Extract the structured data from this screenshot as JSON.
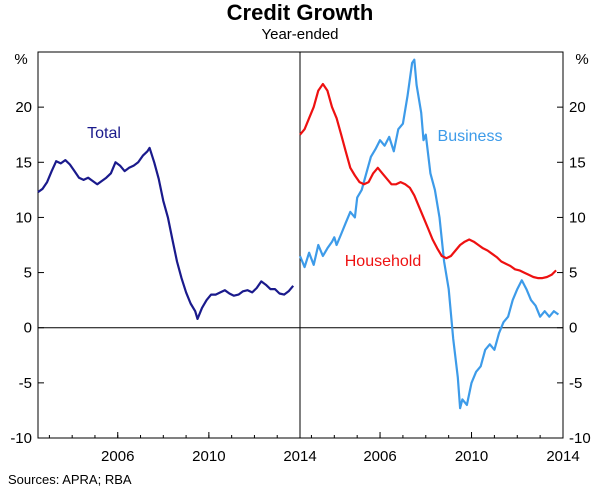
{
  "title": "Credit Growth",
  "subtitle": "Year-ended",
  "source": "Sources: APRA; RBA",
  "colors": {
    "total": "#1a1a8c",
    "business": "#3d9be9",
    "household": "#ee1111",
    "axis": "#000000"
  },
  "chart_data": [
    {
      "type": "line",
      "panel": "left",
      "unit_label": "%",
      "ylim": [
        -10,
        25
      ],
      "yticks": [
        -10,
        -5,
        0,
        5,
        10,
        15,
        20
      ],
      "xlim": [
        2002.5,
        2014
      ],
      "xticks": [
        2006,
        2010,
        2014
      ],
      "series": [
        {
          "name": "Total",
          "color_key": "total",
          "points": [
            [
              2002.5,
              12.3
            ],
            [
              2002.7,
              12.6
            ],
            [
              2002.9,
              13.2
            ],
            [
              2003.1,
              14.2
            ],
            [
              2003.3,
              15.1
            ],
            [
              2003.5,
              14.9
            ],
            [
              2003.7,
              15.2
            ],
            [
              2003.9,
              14.8
            ],
            [
              2004.1,
              14.2
            ],
            [
              2004.3,
              13.6
            ],
            [
              2004.5,
              13.4
            ],
            [
              2004.7,
              13.6
            ],
            [
              2004.9,
              13.3
            ],
            [
              2005.1,
              13.0
            ],
            [
              2005.3,
              13.3
            ],
            [
              2005.5,
              13.6
            ],
            [
              2005.7,
              14.0
            ],
            [
              2005.9,
              15.0
            ],
            [
              2006.1,
              14.7
            ],
            [
              2006.3,
              14.2
            ],
            [
              2006.5,
              14.5
            ],
            [
              2006.7,
              14.7
            ],
            [
              2006.9,
              15.0
            ],
            [
              2007.1,
              15.6
            ],
            [
              2007.3,
              16.0
            ],
            [
              2007.4,
              16.3
            ],
            [
              2007.6,
              15.0
            ],
            [
              2007.8,
              13.5
            ],
            [
              2008.0,
              11.5
            ],
            [
              2008.2,
              10.0
            ],
            [
              2008.4,
              8.0
            ],
            [
              2008.6,
              6.0
            ],
            [
              2008.8,
              4.5
            ],
            [
              2009.0,
              3.2
            ],
            [
              2009.2,
              2.2
            ],
            [
              2009.4,
              1.5
            ],
            [
              2009.5,
              0.8
            ],
            [
              2009.7,
              1.8
            ],
            [
              2009.9,
              2.5
            ],
            [
              2010.1,
              3.0
            ],
            [
              2010.3,
              3.0
            ],
            [
              2010.5,
              3.2
            ],
            [
              2010.7,
              3.4
            ],
            [
              2010.9,
              3.1
            ],
            [
              2011.1,
              2.9
            ],
            [
              2011.3,
              3.0
            ],
            [
              2011.5,
              3.3
            ],
            [
              2011.7,
              3.4
            ],
            [
              2011.9,
              3.2
            ],
            [
              2012.1,
              3.6
            ],
            [
              2012.3,
              4.2
            ],
            [
              2012.5,
              3.9
            ],
            [
              2012.7,
              3.5
            ],
            [
              2012.9,
              3.5
            ],
            [
              2013.1,
              3.1
            ],
            [
              2013.3,
              3.0
            ],
            [
              2013.5,
              3.3
            ],
            [
              2013.7,
              3.8
            ]
          ]
        }
      ]
    },
    {
      "type": "line",
      "panel": "right",
      "unit_label": "%",
      "ylim": [
        -10,
        25
      ],
      "yticks": [
        -10,
        -5,
        0,
        5,
        10,
        15,
        20
      ],
      "xlim": [
        2002.5,
        2014
      ],
      "xticks": [
        2006,
        2010,
        2014
      ],
      "series": [
        {
          "name": "Business",
          "color_key": "business",
          "points": [
            [
              2002.5,
              6.5
            ],
            [
              2002.7,
              5.5
            ],
            [
              2002.9,
              6.8
            ],
            [
              2003.1,
              5.7
            ],
            [
              2003.3,
              7.5
            ],
            [
              2003.5,
              6.5
            ],
            [
              2003.7,
              7.2
            ],
            [
              2003.9,
              7.8
            ],
            [
              2004.0,
              8.2
            ],
            [
              2004.1,
              7.5
            ],
            [
              2004.3,
              8.5
            ],
            [
              2004.5,
              9.5
            ],
            [
              2004.7,
              10.5
            ],
            [
              2004.9,
              10.0
            ],
            [
              2005.0,
              11.8
            ],
            [
              2005.2,
              12.5
            ],
            [
              2005.4,
              14.0
            ],
            [
              2005.6,
              15.5
            ],
            [
              2005.8,
              16.2
            ],
            [
              2006.0,
              17.0
            ],
            [
              2006.2,
              16.5
            ],
            [
              2006.4,
              17.3
            ],
            [
              2006.6,
              16.0
            ],
            [
              2006.8,
              18.0
            ],
            [
              2007.0,
              18.5
            ],
            [
              2007.2,
              21.0
            ],
            [
              2007.4,
              24.0
            ],
            [
              2007.5,
              24.3
            ],
            [
              2007.6,
              22.0
            ],
            [
              2007.8,
              19.5
            ],
            [
              2007.9,
              17.0
            ],
            [
              2008.0,
              17.5
            ],
            [
              2008.2,
              14.0
            ],
            [
              2008.4,
              12.5
            ],
            [
              2008.6,
              10.0
            ],
            [
              2008.8,
              6.0
            ],
            [
              2009.0,
              3.5
            ],
            [
              2009.2,
              -1.0
            ],
            [
              2009.4,
              -4.5
            ],
            [
              2009.5,
              -7.3
            ],
            [
              2009.6,
              -6.5
            ],
            [
              2009.8,
              -7.0
            ],
            [
              2010.0,
              -5.0
            ],
            [
              2010.2,
              -4.0
            ],
            [
              2010.4,
              -3.5
            ],
            [
              2010.6,
              -2.0
            ],
            [
              2010.8,
              -1.5
            ],
            [
              2011.0,
              -2.0
            ],
            [
              2011.2,
              -0.5
            ],
            [
              2011.4,
              0.5
            ],
            [
              2011.6,
              1.0
            ],
            [
              2011.8,
              2.5
            ],
            [
              2012.0,
              3.5
            ],
            [
              2012.2,
              4.3
            ],
            [
              2012.4,
              3.5
            ],
            [
              2012.6,
              2.5
            ],
            [
              2012.8,
              2.0
            ],
            [
              2013.0,
              1.0
            ],
            [
              2013.2,
              1.5
            ],
            [
              2013.4,
              1.0
            ],
            [
              2013.6,
              1.5
            ],
            [
              2013.8,
              1.2
            ]
          ]
        },
        {
          "name": "Household",
          "color_key": "household",
          "points": [
            [
              2002.5,
              17.5
            ],
            [
              2002.7,
              18.0
            ],
            [
              2002.9,
              19.0
            ],
            [
              2003.1,
              20.0
            ],
            [
              2003.3,
              21.5
            ],
            [
              2003.5,
              22.1
            ],
            [
              2003.7,
              21.5
            ],
            [
              2003.9,
              20.0
            ],
            [
              2004.1,
              19.0
            ],
            [
              2004.3,
              17.5
            ],
            [
              2004.5,
              16.0
            ],
            [
              2004.7,
              14.5
            ],
            [
              2004.9,
              13.8
            ],
            [
              2005.1,
              13.2
            ],
            [
              2005.3,
              13.0
            ],
            [
              2005.5,
              13.2
            ],
            [
              2005.7,
              14.0
            ],
            [
              2005.9,
              14.5
            ],
            [
              2006.1,
              14.0
            ],
            [
              2006.3,
              13.5
            ],
            [
              2006.5,
              13.0
            ],
            [
              2006.7,
              13.0
            ],
            [
              2006.9,
              13.2
            ],
            [
              2007.1,
              13.0
            ],
            [
              2007.3,
              12.7
            ],
            [
              2007.5,
              12.0
            ],
            [
              2007.7,
              11.0
            ],
            [
              2007.9,
              10.0
            ],
            [
              2008.1,
              9.0
            ],
            [
              2008.3,
              8.0
            ],
            [
              2008.5,
              7.2
            ],
            [
              2008.7,
              6.5
            ],
            [
              2008.9,
              6.3
            ],
            [
              2009.1,
              6.5
            ],
            [
              2009.3,
              7.0
            ],
            [
              2009.5,
              7.5
            ],
            [
              2009.7,
              7.8
            ],
            [
              2009.9,
              8.0
            ],
            [
              2010.1,
              7.8
            ],
            [
              2010.3,
              7.5
            ],
            [
              2010.5,
              7.2
            ],
            [
              2010.7,
              7.0
            ],
            [
              2010.9,
              6.7
            ],
            [
              2011.1,
              6.4
            ],
            [
              2011.3,
              6.0
            ],
            [
              2011.5,
              5.8
            ],
            [
              2011.7,
              5.6
            ],
            [
              2011.9,
              5.3
            ],
            [
              2012.1,
              5.2
            ],
            [
              2012.3,
              5.0
            ],
            [
              2012.5,
              4.8
            ],
            [
              2012.7,
              4.6
            ],
            [
              2012.9,
              4.5
            ],
            [
              2013.1,
              4.5
            ],
            [
              2013.3,
              4.6
            ],
            [
              2013.5,
              4.8
            ],
            [
              2013.7,
              5.2
            ]
          ]
        }
      ]
    }
  ]
}
